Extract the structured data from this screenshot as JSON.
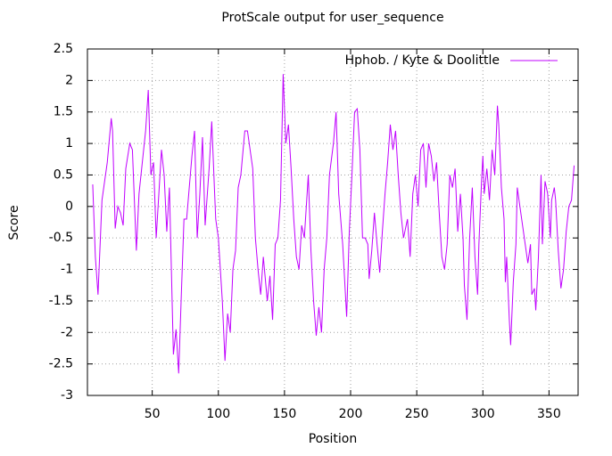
{
  "chart_data": {
    "type": "line",
    "title": "ProtScale output for user_sequence",
    "x_label": "Position",
    "y_label": "Score",
    "x": [
      5,
      7,
      9,
      12,
      14,
      16,
      19,
      20,
      22,
      24,
      26,
      28,
      30,
      33,
      35,
      38,
      40,
      43,
      45,
      47,
      49,
      51,
      53,
      57,
      59,
      61,
      63,
      66,
      68,
      70,
      72,
      74,
      76,
      78,
      80,
      82,
      84,
      86,
      88,
      90,
      93,
      95,
      97,
      98,
      100,
      103,
      105,
      107,
      109,
      111,
      113,
      115,
      117,
      120,
      122,
      124,
      126,
      128,
      130,
      132,
      134,
      137,
      139,
      141,
      143,
      145,
      147,
      149,
      151,
      153,
      155,
      157,
      159,
      161,
      163,
      165,
      168,
      170,
      172,
      174,
      176,
      178,
      180,
      182,
      184,
      187,
      189,
      191,
      194,
      197,
      199,
      201,
      203,
      205,
      207,
      209,
      211,
      213,
      214,
      216,
      218,
      220,
      222,
      224,
      226,
      228,
      230,
      232,
      234,
      236,
      238,
      240,
      243,
      245,
      247,
      249,
      251,
      253,
      255,
      257,
      259,
      261,
      263,
      265,
      267,
      269,
      271,
      273,
      275,
      277,
      279,
      281,
      283,
      285,
      286,
      288,
      290,
      292,
      294,
      296,
      297,
      299,
      300,
      301,
      303,
      305,
      307,
      309,
      311,
      312,
      314,
      316,
      317,
      318,
      320,
      321,
      323,
      325,
      326,
      328,
      330,
      332,
      334,
      336,
      337,
      339,
      340,
      342,
      344,
      345,
      347,
      349,
      351,
      352,
      354,
      355,
      357,
      359,
      361,
      363,
      365,
      367,
      369
    ],
    "series": [
      {
        "name": "Hphob. / Kyte & Doolittle",
        "color": "#c000ff",
        "values": [
          0.35,
          -0.8,
          -1.4,
          0.1,
          0.4,
          0.7,
          1.4,
          1.2,
          -0.35,
          0,
          -0.1,
          -0.3,
          0.6,
          1.0,
          0.9,
          -0.7,
          0.2,
          0.8,
          1.2,
          1.85,
          0.5,
          0.7,
          -0.5,
          0.9,
          0.5,
          -0.4,
          0.3,
          -2.35,
          -1.95,
          -2.65,
          -1.4,
          -0.2,
          -0.2,
          0.3,
          0.8,
          1.2,
          -0.5,
          0.2,
          1.1,
          -0.3,
          0.6,
          1.35,
          0.3,
          -0.2,
          -0.5,
          -1.5,
          -2.45,
          -1.7,
          -2.0,
          -1.0,
          -0.7,
          0.3,
          0.5,
          1.2,
          1.2,
          0.9,
          0.6,
          -0.5,
          -1.0,
          -1.4,
          -0.8,
          -1.5,
          -1.1,
          -1.8,
          -0.6,
          -0.5,
          0.1,
          2.1,
          1.0,
          1.3,
          0.6,
          -0.2,
          -0.8,
          -1.0,
          -0.3,
          -0.5,
          0.5,
          -0.7,
          -1.5,
          -2.05,
          -1.6,
          -2.0,
          -1.0,
          -0.5,
          0.5,
          1.0,
          1.5,
          0.2,
          -0.6,
          -1.75,
          -0.4,
          0.5,
          1.5,
          1.55,
          0.9,
          -0.5,
          -0.5,
          -0.6,
          -1.15,
          -0.7,
          -0.1,
          -0.6,
          -1.05,
          -0.4,
          0.2,
          0.7,
          1.3,
          0.9,
          1.2,
          0.5,
          -0.1,
          -0.5,
          -0.2,
          -0.8,
          0.2,
          0.5,
          0,
          0.9,
          1.0,
          0.3,
          1.0,
          0.8,
          0.4,
          0.7,
          -0.1,
          -0.8,
          -1.0,
          -0.6,
          0.5,
          0.3,
          0.6,
          -0.4,
          0.2,
          -0.5,
          -1.25,
          -1.8,
          -0.5,
          0.3,
          -0.8,
          -1.4,
          -0.6,
          0.4,
          0.8,
          0.2,
          0.6,
          0.1,
          0.9,
          0.5,
          1.6,
          1.3,
          0.3,
          -0.2,
          -1.2,
          -0.8,
          -1.8,
          -2.2,
          -1.2,
          -0.6,
          0.3,
          0,
          -0.3,
          -0.6,
          -0.9,
          -0.6,
          -1.4,
          -1.3,
          -1.65,
          -0.8,
          0.5,
          -0.6,
          0.4,
          0.2,
          -0.5,
          0.1,
          0.3,
          0.1,
          -0.7,
          -1.3,
          -1.0,
          -0.4,
          0,
          0.1,
          0.65
        ]
      }
    ],
    "xlim": [
      1,
      372
    ],
    "xticks": [
      50,
      100,
      150,
      200,
      250,
      300,
      350
    ],
    "ylim": [
      -3,
      2.5
    ],
    "yticks": [
      -3,
      -2.5,
      -2,
      -1.5,
      -1,
      -0.5,
      0,
      0.5,
      1,
      1.5,
      2,
      2.5
    ],
    "grid": true,
    "legend": "top-right"
  }
}
